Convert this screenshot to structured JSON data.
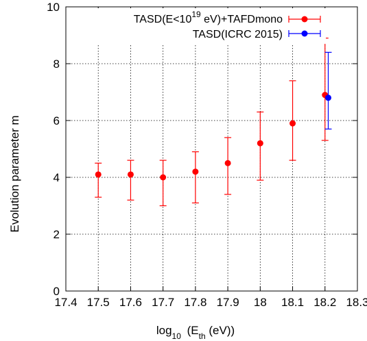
{
  "chart_data": {
    "type": "scatter",
    "xlabel": "log10 (Eth (eV))",
    "ylabel": "Evolution parameter m",
    "xlim": [
      17.4,
      18.3
    ],
    "ylim": [
      0,
      10
    ],
    "xticks": [
      "17.4",
      "17.5",
      "17.6",
      "17.7",
      "17.8",
      "17.9",
      "18",
      "18.1",
      "18.2",
      "18.3"
    ],
    "yticks": [
      "0",
      "2",
      "4",
      "6",
      "8",
      "10"
    ],
    "grid": true,
    "legend_position": "top-right",
    "series": [
      {
        "name": "TASD(E<10^19 eV)+TAFDmono",
        "color": "#ff0000",
        "x": [
          17.5,
          17.6,
          17.7,
          17.8,
          17.9,
          18.0,
          18.1,
          18.2
        ],
        "y": [
          4.1,
          4.1,
          4.0,
          4.2,
          4.5,
          5.2,
          5.9,
          6.9
        ],
        "ylow": [
          3.3,
          3.2,
          3.0,
          3.1,
          3.4,
          3.9,
          4.6,
          5.3
        ],
        "yhigh": [
          4.5,
          4.6,
          4.6,
          4.9,
          5.4,
          6.3,
          7.4,
          8.9
        ]
      },
      {
        "name": "TASD(ICRC 2015)",
        "color": "#0000ff",
        "x": [
          18.21
        ],
        "y": [
          6.8
        ],
        "ylow": [
          5.7
        ],
        "yhigh": [
          8.4
        ]
      }
    ]
  }
}
